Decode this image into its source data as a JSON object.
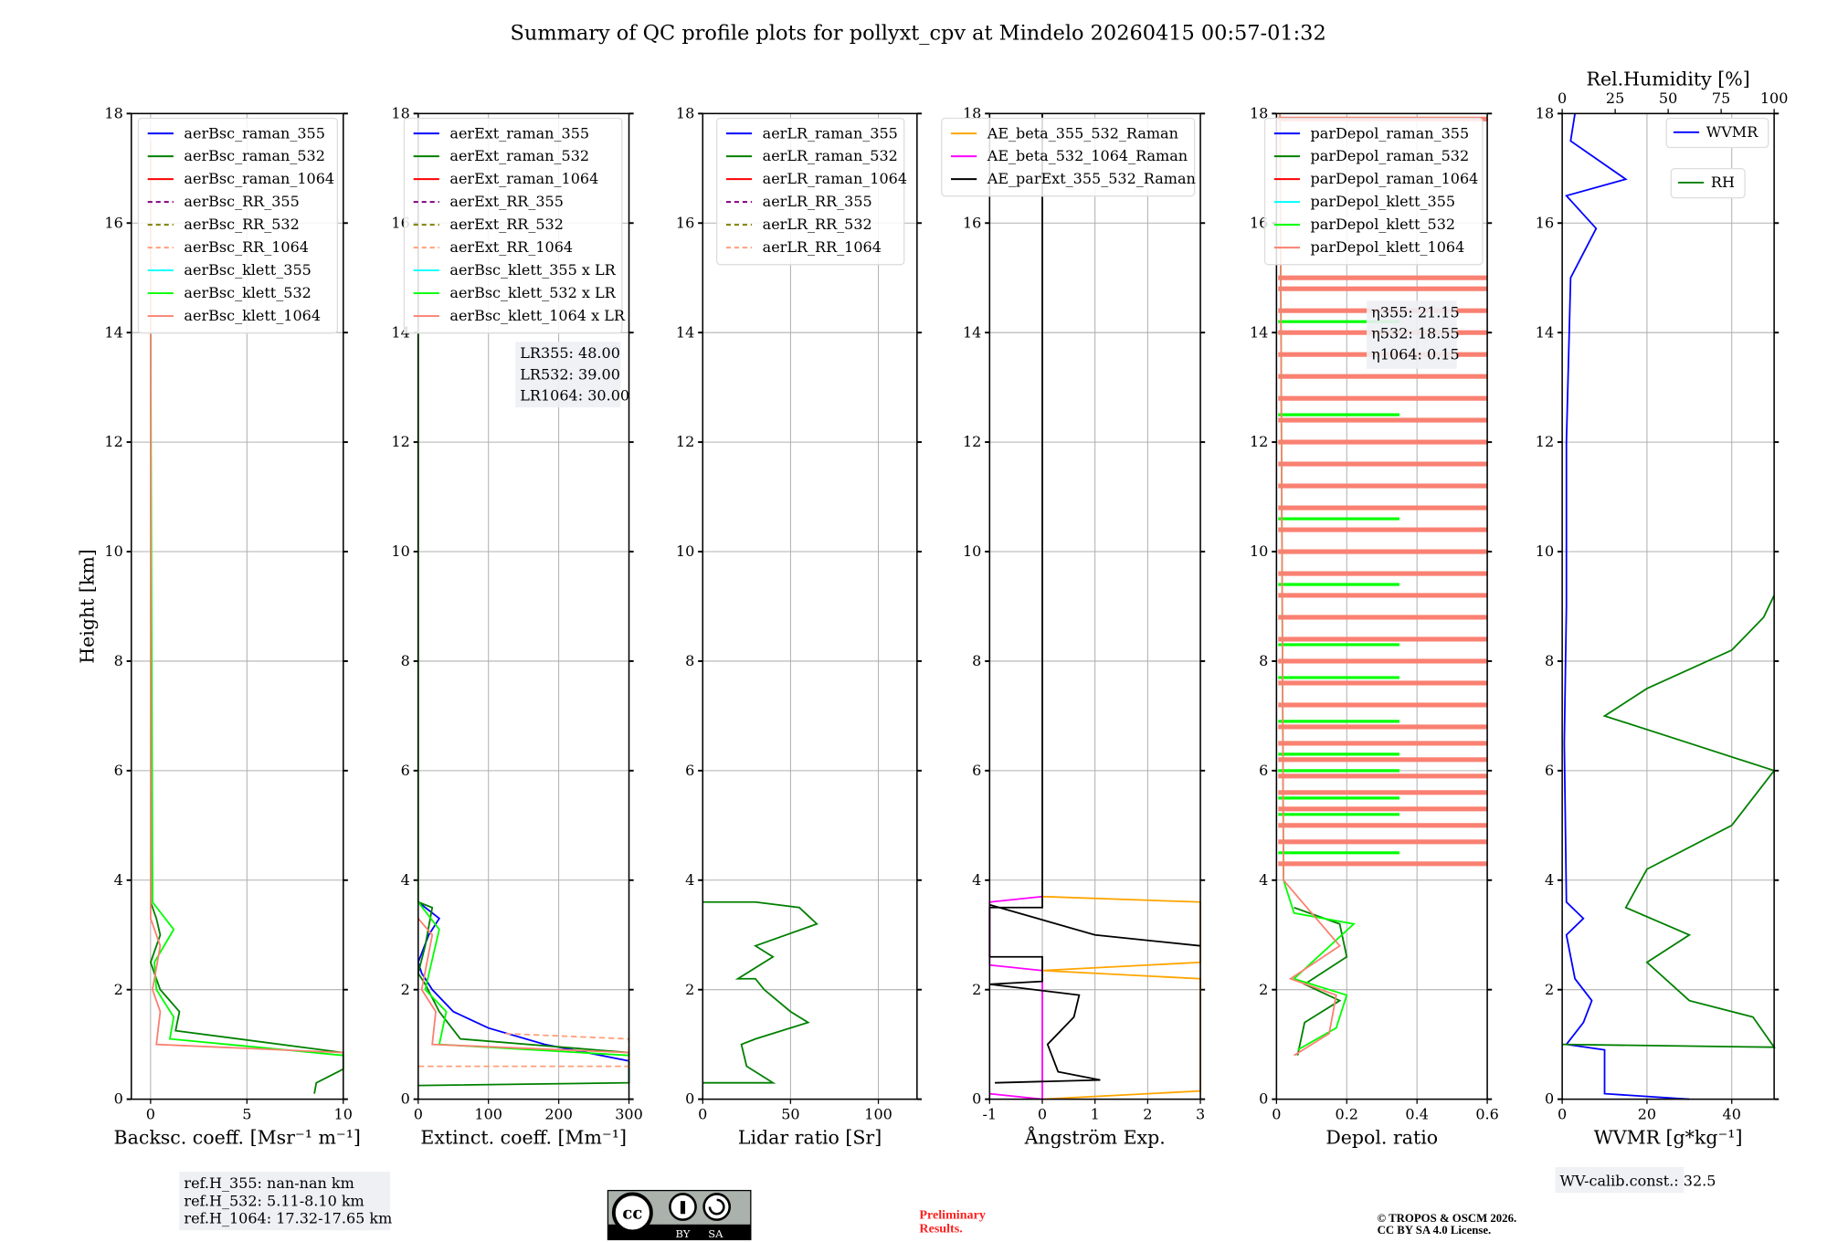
{
  "title": "Summary of QC profile plots for pollyxt_cpv at Mindelo 20260415 00:57-01:32",
  "ylabel": "Height [km]",
  "yticks": [
    0,
    2,
    4,
    6,
    8,
    10,
    12,
    14,
    16,
    18
  ],
  "ylim": [
    0,
    18
  ],
  "chart_data": [
    {
      "type": "line",
      "xlabel": "Backsc. coeff. [Msr⁻¹ m⁻¹]",
      "xlim": [
        -1,
        10
      ],
      "xticks": [
        0,
        5,
        10
      ],
      "legend": "top",
      "series": [
        {
          "name": "aerBsc_raman_355",
          "color": "#0000ff",
          "dash": false,
          "points": []
        },
        {
          "name": "aerBsc_raman_532",
          "color": "#008000",
          "dash": false,
          "points": [
            [
              8.5,
              0.1
            ],
            [
              8.6,
              0.3
            ],
            [
              10,
              0.55
            ],
            [
              10,
              0.85
            ],
            [
              1.3,
              1.25
            ],
            [
              1.5,
              1.6
            ],
            [
              0.5,
              2.0
            ],
            [
              0.2,
              2.3
            ],
            [
              0,
              2.5
            ],
            [
              0.5,
              3.0
            ],
            [
              0.3,
              3.3
            ],
            [
              0,
              3.6
            ],
            [
              0,
              14
            ]
          ]
        },
        {
          "name": "aerBsc_raman_1064",
          "color": "#ff0000",
          "dash": false,
          "points": []
        },
        {
          "name": "aerBsc_RR_355",
          "color": "#800080",
          "dash": true,
          "points": []
        },
        {
          "name": "aerBsc_RR_532",
          "color": "#808000",
          "dash": true,
          "points": []
        },
        {
          "name": "aerBsc_RR_1064",
          "color": "#ffa07a",
          "dash": true,
          "points": []
        },
        {
          "name": "aerBsc_klett_355",
          "color": "#00ffff",
          "dash": false,
          "points": []
        },
        {
          "name": "aerBsc_klett_532",
          "color": "#00ff00",
          "dash": false,
          "points": [
            [
              10,
              0.8
            ],
            [
              1.0,
              1.1
            ],
            [
              1.2,
              1.5
            ],
            [
              0.3,
              2.0
            ],
            [
              0.2,
              2.5
            ],
            [
              1.2,
              3.1
            ],
            [
              0.1,
              3.6
            ],
            [
              0,
              14
            ]
          ]
        },
        {
          "name": "aerBsc_klett_1064",
          "color": "#fa8072",
          "dash": false,
          "points": [
            [
              10,
              0.85
            ],
            [
              0.3,
              1.0
            ],
            [
              0.5,
              1.6
            ],
            [
              0.1,
              2.0
            ],
            [
              0.5,
              2.8
            ],
            [
              0,
              3.3
            ],
            [
              0,
              17.5
            ]
          ]
        }
      ]
    },
    {
      "type": "line",
      "xlabel": "Extinct. coeff. [Mm⁻¹]",
      "xlim": [
        0,
        300
      ],
      "xticks": [
        0,
        100,
        200,
        300
      ],
      "legend": "top",
      "annotation": [
        "LR355: 48.00",
        "LR532: 39.00",
        "LR1064: 30.00"
      ],
      "series": [
        {
          "name": "aerExt_raman_355",
          "color": "#0000ff",
          "dash": false,
          "points": [
            [
              300,
              0.3
            ],
            [
              300,
              0.7
            ],
            [
              180,
              1.0
            ],
            [
              100,
              1.3
            ],
            [
              50,
              1.6
            ],
            [
              20,
              2.0
            ],
            [
              5,
              2.3
            ],
            [
              0,
              2.5
            ],
            [
              15,
              3.0
            ],
            [
              30,
              3.3
            ],
            [
              0,
              3.6
            ]
          ]
        },
        {
          "name": "aerExt_raman_532",
          "color": "#008000",
          "dash": false,
          "points": [
            [
              0,
              0.25
            ],
            [
              300,
              0.3
            ],
            [
              300,
              0.85
            ],
            [
              60,
              1.1
            ],
            [
              30,
              1.6
            ],
            [
              10,
              2.1
            ],
            [
              0,
              2.3
            ],
            [
              10,
              2.8
            ],
            [
              20,
              3.5
            ],
            [
              0,
              3.6
            ]
          ]
        },
        {
          "name": "aerExt_raman_1064",
          "color": "#ff0000",
          "dash": false,
          "points": []
        },
        {
          "name": "aerExt_RR_355",
          "color": "#800080",
          "dash": true,
          "points": []
        },
        {
          "name": "aerExt_RR_532",
          "color": "#808000",
          "dash": true,
          "points": []
        },
        {
          "name": "aerExt_RR_1064",
          "color": "#ffa07a",
          "dash": true,
          "points": [
            [
              0,
              0.6
            ],
            [
              300,
              0.6
            ],
            [
              300,
              1.1
            ],
            [
              120,
              1.2
            ]
          ]
        },
        {
          "name": "aerBsc_klett_355 x LR",
          "color": "#00ffff",
          "dash": false,
          "points": []
        },
        {
          "name": "aerBsc_klett_532 x LR",
          "color": "#00ff00",
          "dash": false,
          "points": [
            [
              300,
              0.8
            ],
            [
              30,
              1.0
            ],
            [
              40,
              1.6
            ],
            [
              10,
              2.0
            ],
            [
              30,
              3.1
            ],
            [
              0,
              3.6
            ],
            [
              0,
              14
            ]
          ]
        },
        {
          "name": "aerBsc_klett_1064 x LR",
          "color": "#fa8072",
          "dash": false,
          "points": [
            [
              300,
              0.85
            ],
            [
              20,
              1.0
            ],
            [
              25,
              1.6
            ],
            [
              5,
              2.0
            ],
            [
              20,
              3.0
            ],
            [
              0,
              3.3
            ]
          ]
        }
      ]
    },
    {
      "type": "line",
      "xlabel": "Lidar ratio [Sr]",
      "xlim": [
        0,
        122
      ],
      "xticks": [
        0,
        50,
        100
      ],
      "legend": "top",
      "series": [
        {
          "name": "aerLR_raman_355",
          "color": "#0000ff",
          "dash": false,
          "points": []
        },
        {
          "name": "aerLR_raman_532",
          "color": "#008000",
          "dash": false,
          "points": [
            [
              0,
              0.3
            ],
            [
              40,
              0.3
            ],
            [
              35,
              0.4
            ],
            [
              25,
              0.6
            ],
            [
              22,
              1.0
            ],
            [
              30,
              1.1
            ],
            [
              60,
              1.4
            ],
            [
              50,
              1.6
            ],
            [
              35,
              2.0
            ],
            [
              30,
              2.2
            ],
            [
              20,
              2.2
            ],
            [
              40,
              2.6
            ],
            [
              30,
              2.8
            ],
            [
              65,
              3.2
            ],
            [
              55,
              3.5
            ],
            [
              30,
              3.6
            ],
            [
              0,
              3.6
            ]
          ]
        },
        {
          "name": "aerLR_raman_1064",
          "color": "#ff0000",
          "dash": false,
          "points": []
        },
        {
          "name": "aerLR_RR_355",
          "color": "#800080",
          "dash": true,
          "points": []
        },
        {
          "name": "aerLR_RR_532",
          "color": "#808000",
          "dash": true,
          "points": []
        },
        {
          "name": "aerLR_RR_1064",
          "color": "#ffa07a",
          "dash": true,
          "points": []
        }
      ]
    },
    {
      "type": "line",
      "xlabel": "Ångström Exp.",
      "xlim": [
        -1,
        3
      ],
      "xticks": [
        -1,
        0,
        1,
        2,
        3
      ],
      "legend": "top",
      "series": [
        {
          "name": "AE_beta_355_532_Raman",
          "color": "#ffa500",
          "dash": false,
          "points": [
            [
              0,
              0
            ],
            [
              3,
              0.15
            ],
            [
              3,
              2.2
            ],
            [
              0,
              2.35
            ],
            [
              3,
              2.5
            ],
            [
              3,
              3.6
            ],
            [
              0,
              3.7
            ]
          ]
        },
        {
          "name": "AE_beta_532_1064_Raman",
          "color": "#ff00ff",
          "dash": false,
          "points": [
            [
              -1,
              0.1
            ],
            [
              0,
              0
            ],
            [
              0,
              2.35
            ],
            [
              -1,
              2.45
            ],
            [
              -1,
              3.6
            ],
            [
              0,
              3.7
            ]
          ]
        },
        {
          "name": "AE_parExt_355_532_Raman",
          "color": "#000000",
          "dash": false,
          "points": [
            [
              -0.9,
              0.3
            ],
            [
              1.1,
              0.35
            ],
            [
              0.3,
              0.5
            ],
            [
              0.1,
              1.0
            ],
            [
              0.6,
              1.5
            ],
            [
              0.7,
              1.9
            ],
            [
              -1,
              2.1
            ],
            [
              0,
              2.15
            ],
            [
              0,
              2.6
            ],
            [
              -1,
              2.6
            ],
            [
              -1,
              3.5
            ],
            [
              0,
              3.5
            ],
            [
              0,
              18
            ]
          ]
        },
        {
          "name": "AE_parExt_355_532_Raman_upper",
          "color": "#000000",
          "dash": false,
          "legendHidden": true,
          "points": [
            [
              -1,
              3.55
            ],
            [
              1,
              3.0
            ],
            [
              3,
              2.8
            ]
          ]
        }
      ]
    },
    {
      "type": "line",
      "xlabel": "Depol. ratio",
      "xlim": [
        0,
        0.6
      ],
      "xticks": [
        0.0,
        0.2,
        0.4,
        0.6
      ],
      "legend": "top",
      "annotation": [
        "η355: 21.15",
        "η532: 18.55",
        "η1064: 0.15"
      ],
      "salmon_bar_heights": [
        4.3,
        4.7,
        5.0,
        5.3,
        5.6,
        5.9,
        6.2,
        6.5,
        6.8,
        7.2,
        7.6,
        8.0,
        8.4,
        8.8,
        9.2,
        9.6,
        10.0,
        10.4,
        10.8,
        11.2,
        11.6,
        12.0,
        12.4,
        12.8,
        13.2,
        13.6,
        14.0,
        14.4,
        14.8,
        15.0,
        17.9
      ],
      "lime_bar_heights": [
        4.5,
        5.2,
        5.5,
        6.0,
        6.3,
        6.9,
        7.7,
        8.3,
        9.4,
        10.6,
        12.5,
        14.2
      ],
      "series": [
        {
          "name": "parDepol_raman_355",
          "color": "#0000ff",
          "dash": false,
          "points": []
        },
        {
          "name": "parDepol_raman_532",
          "color": "#008000",
          "dash": false,
          "points": [
            [
              0.06,
              0.8
            ],
            [
              0.08,
              1.4
            ],
            [
              0.18,
              1.8
            ],
            [
              0.08,
              2.1
            ],
            [
              0.2,
              2.6
            ],
            [
              0.18,
              3.2
            ],
            [
              0.05,
              3.5
            ]
          ]
        },
        {
          "name": "parDepol_raman_1064",
          "color": "#ff0000",
          "dash": false,
          "points": []
        },
        {
          "name": "parDepol_klett_355",
          "color": "#00ffff",
          "dash": false,
          "points": []
        },
        {
          "name": "parDepol_klett_532",
          "color": "#00ff00",
          "dash": false,
          "points": [
            [
              0.06,
              0.9
            ],
            [
              0.17,
              1.3
            ],
            [
              0.2,
              1.9
            ],
            [
              0.05,
              2.2
            ],
            [
              0.22,
              3.2
            ],
            [
              0.05,
              3.4
            ],
            [
              0.02,
              4
            ],
            [
              0.01,
              18
            ]
          ]
        },
        {
          "name": "parDepol_klett_1064",
          "color": "#fa8072",
          "dash": false,
          "points": [
            [
              0.05,
              0.8
            ],
            [
              0.15,
              1.2
            ],
            [
              0.17,
              1.9
            ],
            [
              0.04,
              2.2
            ],
            [
              0.18,
              2.8
            ],
            [
              0.1,
              3.4
            ],
            [
              0.02,
              4.0
            ],
            [
              0.01,
              18
            ]
          ]
        }
      ]
    },
    {
      "type": "line",
      "xlabel": "WVMR [g*kg⁻¹]",
      "xlim": [
        0,
        50
      ],
      "xticks": [
        0,
        20,
        40
      ],
      "legend": "top-right",
      "top_axis": {
        "label": "Rel.Humidity [%]",
        "xlim": [
          0,
          100
        ],
        "xticks": [
          0,
          25,
          50,
          75,
          100
        ]
      },
      "annotation": [
        "WV-calib.const.: 32.5"
      ],
      "series": [
        {
          "name": "WVMR",
          "color": "#0000ff",
          "dash": false,
          "points": [
            [
              30,
              0
            ],
            [
              10,
              0.1
            ],
            [
              10,
              0.9
            ],
            [
              1,
              1.0
            ],
            [
              5,
              1.4
            ],
            [
              7,
              1.8
            ],
            [
              3,
              2.2
            ],
            [
              1,
              3.0
            ],
            [
              5,
              3.3
            ],
            [
              1,
              3.6
            ],
            [
              0.5,
              6.5
            ],
            [
              1,
              9
            ],
            [
              1,
              12
            ],
            [
              2,
              15
            ],
            [
              8,
              15.9
            ],
            [
              1,
              16.5
            ],
            [
              15,
              16.8
            ],
            [
              2,
              17.5
            ],
            [
              3,
              18
            ]
          ]
        },
        {
          "name": "RH",
          "color": "#008000",
          "dash": false,
          "axis": "top",
          "points": [
            [
              0,
              1.0
            ],
            [
              100,
              0.95
            ],
            [
              90,
              1.5
            ],
            [
              60,
              1.8
            ],
            [
              40,
              2.5
            ],
            [
              60,
              3.0
            ],
            [
              30,
              3.5
            ],
            [
              40,
              4.2
            ],
            [
              80,
              5.0
            ],
            [
              100,
              6.0
            ],
            [
              60,
              6.5
            ],
            [
              20,
              7.0
            ],
            [
              40,
              7.5
            ],
            [
              80,
              8.2
            ],
            [
              95,
              8.8
            ],
            [
              100,
              9.2
            ]
          ]
        }
      ]
    }
  ],
  "footer": {
    "ref_heights": [
      "ref.H_355: nan-nan km",
      "ref.H_532: 5.11-8.10 km",
      "ref.H_1064: 17.32-17.65 km"
    ],
    "license_badge": [
      "cc",
      "BY",
      "SA"
    ],
    "preliminary": [
      "Preliminary",
      "Results."
    ],
    "copyright": [
      "© TROPOS & OSCM 2026.",
      "CC BY SA 4.0 License."
    ]
  }
}
